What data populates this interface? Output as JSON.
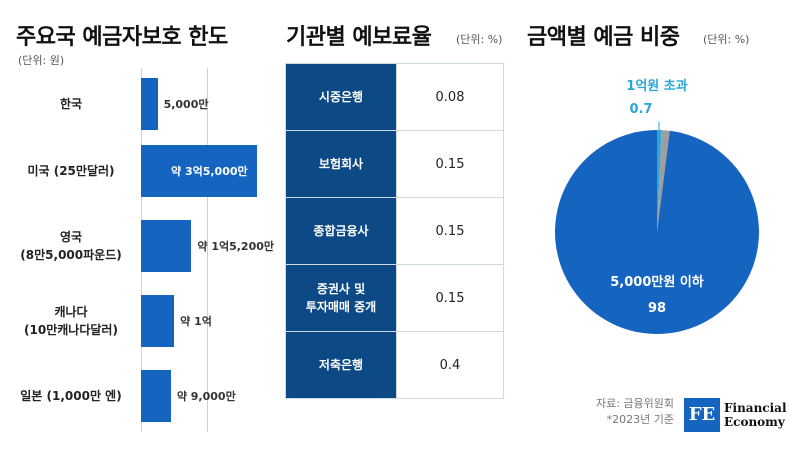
{
  "left": {
    "title": "주요국 예금자보호 한도",
    "unit": "(단위: 원)"
  },
  "middle": {
    "title": "기관별 예보료율",
    "unit": "(단위: %)"
  },
  "right": {
    "title": "금액별 예금 비중",
    "unit": "(단위: %)"
  },
  "source": {
    "line1": "자료: 금융위원회",
    "line2": "*2023년 기준"
  },
  "logo": {
    "mark": "FE",
    "line1": "Financial",
    "line2": "Economy"
  },
  "chart_data": [
    {
      "type": "bar",
      "orientation": "horizontal",
      "title": "주요국 예금자보호 한도",
      "unit": "(단위: 원)",
      "categories": [
        [
          "한국"
        ],
        [
          "미국 (25만달러)"
        ],
        [
          "영국",
          "(8만5,000파운드)"
        ],
        [
          "캐나다",
          "(10만캐나다달러)"
        ],
        [
          "일본 (1,000만 엔)"
        ]
      ],
      "values": [
        50000000,
        350000000,
        152000000,
        100000000,
        90000000
      ],
      "labels": [
        "5,000만",
        "약 3억5,000만",
        "약 1억5,200만",
        "약 1억",
        "약 9,000만"
      ],
      "bar_color": "#1565c0"
    },
    {
      "type": "table",
      "title": "기관별 예보료율",
      "unit": "(단위: %)",
      "rows": [
        {
          "category": [
            "시중은행"
          ],
          "value": "0.08"
        },
        {
          "category": [
            "보험회사"
          ],
          "value": "0.15"
        },
        {
          "category": [
            "종합금융사"
          ],
          "value": "0.15"
        },
        {
          "category": [
            "증권사 및",
            "투자매매 중개"
          ],
          "value": "0.15"
        },
        {
          "category": [
            "저축은행"
          ],
          "value": "0.4"
        }
      ]
    },
    {
      "type": "pie",
      "title": "금액별 예금 비중",
      "unit": "(단위: %)",
      "slices": [
        {
          "label": "5,000만원 이하",
          "value": 98,
          "value_label": "98",
          "color": "#1565c0"
        },
        {
          "label": "1억원 초과",
          "value": 0.7,
          "value_label": "0.7",
          "color": "#29a7d8"
        },
        {
          "label": "",
          "value": 1.3,
          "value_label": "",
          "color": "#9e9e9e"
        }
      ]
    }
  ]
}
